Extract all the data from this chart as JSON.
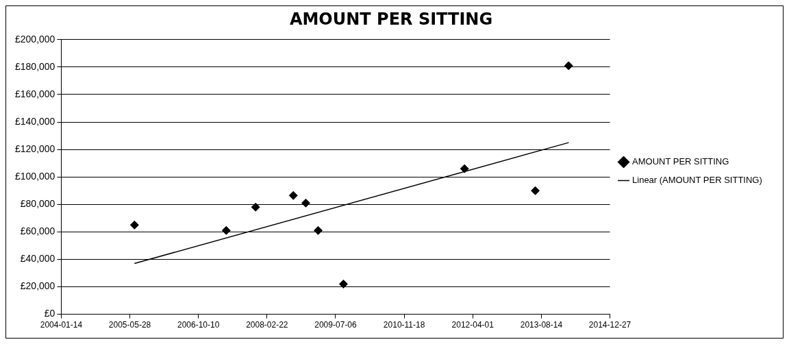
{
  "chart_data": {
    "type": "scatter",
    "title": "AMOUNT PER SITTING",
    "xlim": [
      "2004-01-14",
      "2014-12-27"
    ],
    "xticks": [
      {
        "value": "2004-01-14",
        "label": "2004-01-14"
      },
      {
        "value": "2005-05-28",
        "label": "2005-05-28"
      },
      {
        "value": "2006-10-10",
        "label": "2006-10-10"
      },
      {
        "value": "2008-02-22",
        "label": "2008-02-22"
      },
      {
        "value": "2009-07-06",
        "label": "2009-07-06"
      },
      {
        "value": "2010-11-18",
        "label": "2010-11-18"
      },
      {
        "value": "2012-04-01",
        "label": "2012-04-01"
      },
      {
        "value": "2013-08-14",
        "label": "2013-08-14"
      },
      "2014-12-27"
    ],
    "ylim": [
      0,
      200000
    ],
    "yticks": [
      {
        "value": 0,
        "label": "£0"
      },
      {
        "value": 20000,
        "label": "£20,000"
      },
      {
        "value": 40000,
        "label": "£40,000"
      },
      {
        "value": 60000,
        "label": "£60,000"
      },
      {
        "value": 80000,
        "label": "£80,000"
      },
      {
        "value": 100000,
        "label": "£100,000"
      },
      {
        "value": 120000,
        "label": "£120,000"
      },
      {
        "value": 140000,
        "label": "£140,000"
      },
      {
        "value": 160000,
        "label": "£160,000"
      },
      {
        "value": 180000,
        "label": "£180,000"
      },
      {
        "value": 200000,
        "label": "£200,000"
      }
    ],
    "grid": "y",
    "legend": "right",
    "series": [
      {
        "name": "AMOUNT PER SITTING",
        "color": "#000000",
        "marker": "diamond",
        "x": [
          "2005-07",
          "2007-05",
          "2007-12",
          "2008-09",
          "2008-12",
          "2009-03",
          "2009-09",
          "2012-02",
          "2013-07",
          "2014-03"
        ],
        "values": [
          65000,
          61000,
          78000,
          86500,
          81000,
          61000,
          22000,
          106000,
          90000,
          181000
        ]
      },
      {
        "name": "Linear (AMOUNT PER SITTING)",
        "type": "line",
        "color": "#000000",
        "marker": "none",
        "line_style": "solid",
        "x": [
          "2005-07",
          "2014-03"
        ],
        "values": [
          37000,
          125000
        ]
      }
    ]
  }
}
